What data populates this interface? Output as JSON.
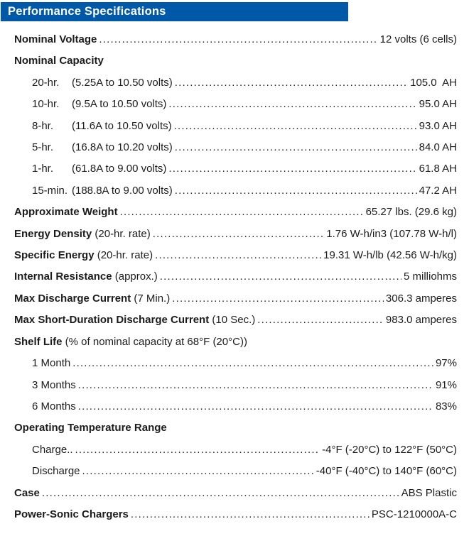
{
  "header": {
    "title": "Performance Specifications"
  },
  "colors": {
    "header_bg": "#0058a8",
    "header_text": "#ffffff",
    "body_text": "#1c1c1e"
  },
  "rows": [
    {
      "name": "nominal-voltage",
      "bold": "Nominal Voltage",
      "value": "12 volts (6 cells)"
    },
    {
      "name": "nominal-capacity",
      "bold": "Nominal Capacity",
      "heading": true
    },
    {
      "name": "capacity-20hr",
      "indent": 1,
      "term": "20-hr.",
      "rest": "(5.25A to 10.50 volts)",
      "value": "105.0  AH"
    },
    {
      "name": "capacity-10hr",
      "indent": 1,
      "term": "10-hr.",
      "rest": "(9.5A to 10.50 volts)",
      "value": "95.0 AH"
    },
    {
      "name": "capacity-8hr",
      "indent": 1,
      "term": "8-hr.",
      "rest": "(11.6A to 10.50 volts)",
      "value": "93.0 AH"
    },
    {
      "name": "capacity-5hr",
      "indent": 1,
      "term": "5-hr.",
      "rest": "(16.8A to 10.20 volts)",
      "value": "84.0 AH"
    },
    {
      "name": "capacity-1hr",
      "indent": 1,
      "term": "1-hr.",
      "rest": "(61.8A to 9.00 volts)",
      "value": "61.8 AH"
    },
    {
      "name": "capacity-15min",
      "indent": 1,
      "term": "15-min.",
      "rest": "(188.8A to 9.00 volts)",
      "value": "47.2 AH"
    },
    {
      "name": "approximate-weight",
      "bold": "Approximate Weight",
      "value": "65.27 lbs. (29.6 kg)"
    },
    {
      "name": "energy-density",
      "bold": "Energy Density",
      "rest": " (20-hr. rate)",
      "value": "1.76 W-h/in3 (107.78 W-h/l)"
    },
    {
      "name": "specific-energy",
      "bold": "Specific Energy",
      "rest": " (20-hr. rate)",
      "value": "19.31 W-h/lb (42.56 W-h/kg)"
    },
    {
      "name": "internal-resistance",
      "bold": "Internal Resistance",
      "rest": " (approx.)",
      "value": "5 milliohms"
    },
    {
      "name": "max-discharge-current",
      "bold": "Max Discharge Current",
      "rest": " (7 Min.)",
      "value": "306.3 amperes"
    },
    {
      "name": "max-short-duration-discharge-current",
      "bold": "Max Short-Duration Discharge Current",
      "rest": " (10 Sec.)",
      "value": "983.0 amperes"
    },
    {
      "name": "shelf-life",
      "bold": "Shelf Life",
      "rest": " (% of nominal capacity at 68°F (20°C))",
      "heading": true
    },
    {
      "name": "shelf-life-1-month",
      "indent": 1,
      "rest": "1 Month",
      "value": "97%"
    },
    {
      "name": "shelf-life-3-months",
      "indent": 1,
      "rest": "3 Months",
      "value": "91%"
    },
    {
      "name": "shelf-life-6-months",
      "indent": 1,
      "rest": "6 Months",
      "value": "83%"
    },
    {
      "name": "operating-temperature-range",
      "bold": "Operating Temperature Range",
      "heading": true
    },
    {
      "name": "charge-temperature",
      "indent": 1,
      "rest": "Charge..",
      "value": "-4°F (-20°C) to 122°F (50°C)"
    },
    {
      "name": "discharge-temperature",
      "indent": 1,
      "rest": "Discharge",
      "value": "-40°F (-40°C) to 140°F (60°C)"
    },
    {
      "name": "case",
      "bold": "Case",
      "value": "ABS Plastic"
    },
    {
      "name": "power-sonic-chargers",
      "bold": "Power-Sonic Chargers",
      "value": "PSC-1210000A-C"
    }
  ]
}
